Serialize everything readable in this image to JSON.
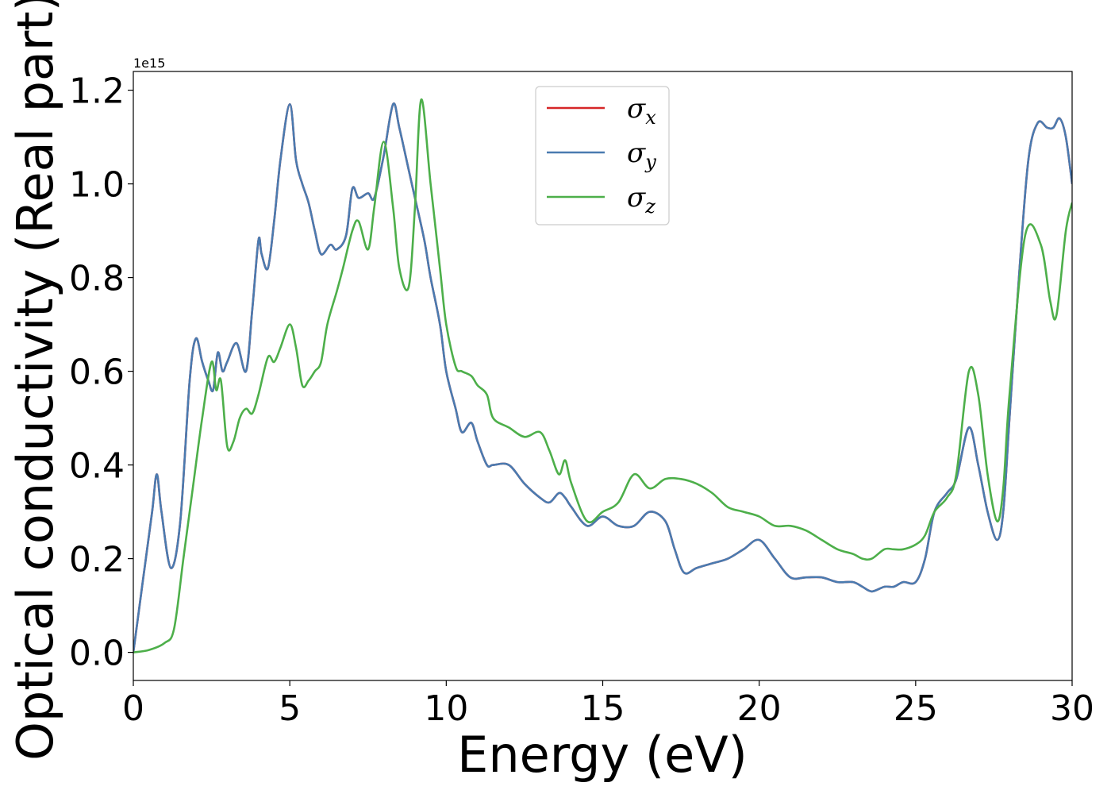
{
  "chart_data": {
    "type": "line",
    "title": "",
    "xlabel": "Energy (eV)",
    "ylabel": "Optical conductivity (Real part)",
    "y_offset_text": "1e15",
    "xlim": [
      0,
      30
    ],
    "ylim": [
      -0.06,
      1.24
    ],
    "xticks": [
      0,
      5,
      10,
      15,
      20,
      25,
      30
    ],
    "xtick_labels": [
      "0",
      "5",
      "10",
      "15",
      "20",
      "25",
      "30"
    ],
    "yticks": [
      0.0,
      0.2,
      0.4,
      0.6,
      0.8,
      1.0,
      1.2
    ],
    "ytick_labels": [
      "0.0",
      "0.2",
      "0.4",
      "0.6",
      "0.8",
      "1.0",
      "1.2"
    ],
    "grid": false,
    "legend_position": "top-center",
    "series": [
      {
        "name": "σx",
        "symbol": "σ",
        "subscript": "x",
        "color": "#d62728",
        "x": [
          0,
          0.3,
          0.6,
          0.75,
          0.9,
          1.2,
          1.5,
          1.8,
          2.0,
          2.2,
          2.4,
          2.55,
          2.7,
          2.85,
          3.0,
          3.3,
          3.6,
          3.8,
          4.0,
          4.1,
          4.3,
          4.5,
          4.7,
          5.0,
          5.2,
          5.4,
          5.6,
          5.8,
          6.0,
          6.3,
          6.5,
          6.8,
          7.0,
          7.2,
          7.5,
          7.7,
          8.0,
          8.3,
          8.5,
          8.8,
          9.0,
          9.3,
          9.5,
          9.8,
          10.0,
          10.3,
          10.5,
          10.8,
          11.0,
          11.3,
          11.5,
          12.0,
          12.5,
          13.0,
          13.3,
          13.6,
          13.8,
          14.0,
          14.5,
          15.0,
          15.5,
          16.0,
          16.5,
          17.0,
          17.3,
          17.6,
          18.0,
          18.5,
          19.0,
          19.5,
          20.0,
          20.5,
          21.0,
          21.5,
          22.0,
          22.5,
          23.0,
          23.3,
          23.6,
          24.0,
          24.3,
          24.6,
          25.0,
          25.3,
          25.6,
          26.0,
          26.3,
          26.7,
          27.0,
          27.3,
          27.6,
          27.8,
          28.0,
          28.3,
          28.6,
          28.9,
          29.2,
          29.4,
          29.6,
          29.8,
          30.0
        ],
        "y": [
          0.0,
          0.15,
          0.3,
          0.38,
          0.3,
          0.18,
          0.28,
          0.58,
          0.67,
          0.62,
          0.58,
          0.56,
          0.64,
          0.6,
          0.62,
          0.66,
          0.6,
          0.73,
          0.88,
          0.85,
          0.82,
          0.92,
          1.05,
          1.17,
          1.05,
          1.0,
          0.96,
          0.9,
          0.85,
          0.87,
          0.86,
          0.89,
          0.99,
          0.97,
          0.98,
          0.97,
          1.06,
          1.17,
          1.12,
          1.03,
          0.97,
          0.88,
          0.8,
          0.7,
          0.6,
          0.52,
          0.47,
          0.49,
          0.45,
          0.4,
          0.4,
          0.4,
          0.36,
          0.33,
          0.32,
          0.34,
          0.33,
          0.31,
          0.27,
          0.29,
          0.27,
          0.27,
          0.3,
          0.28,
          0.22,
          0.17,
          0.18,
          0.19,
          0.2,
          0.22,
          0.24,
          0.2,
          0.16,
          0.16,
          0.16,
          0.15,
          0.15,
          0.14,
          0.13,
          0.14,
          0.14,
          0.15,
          0.15,
          0.2,
          0.3,
          0.34,
          0.37,
          0.48,
          0.4,
          0.3,
          0.24,
          0.3,
          0.5,
          0.8,
          1.05,
          1.13,
          1.12,
          1.12,
          1.14,
          1.1,
          1.0
        ]
      },
      {
        "name": "σy",
        "symbol": "σ",
        "subscript": "y",
        "color": "#4a7bb0",
        "x": [
          0,
          0.3,
          0.6,
          0.75,
          0.9,
          1.2,
          1.5,
          1.8,
          2.0,
          2.2,
          2.4,
          2.55,
          2.7,
          2.85,
          3.0,
          3.3,
          3.6,
          3.8,
          4.0,
          4.1,
          4.3,
          4.5,
          4.7,
          5.0,
          5.2,
          5.4,
          5.6,
          5.8,
          6.0,
          6.3,
          6.5,
          6.8,
          7.0,
          7.2,
          7.5,
          7.7,
          8.0,
          8.3,
          8.5,
          8.8,
          9.0,
          9.3,
          9.5,
          9.8,
          10.0,
          10.3,
          10.5,
          10.8,
          11.0,
          11.3,
          11.5,
          12.0,
          12.5,
          13.0,
          13.3,
          13.6,
          13.8,
          14.0,
          14.5,
          15.0,
          15.5,
          16.0,
          16.5,
          17.0,
          17.3,
          17.6,
          18.0,
          18.5,
          19.0,
          19.5,
          20.0,
          20.5,
          21.0,
          21.5,
          22.0,
          22.5,
          23.0,
          23.3,
          23.6,
          24.0,
          24.3,
          24.6,
          25.0,
          25.3,
          25.6,
          26.0,
          26.3,
          26.7,
          27.0,
          27.3,
          27.6,
          27.8,
          28.0,
          28.3,
          28.6,
          28.9,
          29.2,
          29.4,
          29.6,
          29.8,
          30.0
        ],
        "y": [
          0.0,
          0.15,
          0.3,
          0.38,
          0.3,
          0.18,
          0.28,
          0.58,
          0.67,
          0.62,
          0.58,
          0.56,
          0.64,
          0.6,
          0.62,
          0.66,
          0.6,
          0.73,
          0.88,
          0.85,
          0.82,
          0.92,
          1.05,
          1.17,
          1.05,
          1.0,
          0.96,
          0.9,
          0.85,
          0.87,
          0.86,
          0.89,
          0.99,
          0.97,
          0.98,
          0.97,
          1.06,
          1.17,
          1.12,
          1.03,
          0.97,
          0.88,
          0.8,
          0.7,
          0.6,
          0.52,
          0.47,
          0.49,
          0.45,
          0.4,
          0.4,
          0.4,
          0.36,
          0.33,
          0.32,
          0.34,
          0.33,
          0.31,
          0.27,
          0.29,
          0.27,
          0.27,
          0.3,
          0.28,
          0.22,
          0.17,
          0.18,
          0.19,
          0.2,
          0.22,
          0.24,
          0.2,
          0.16,
          0.16,
          0.16,
          0.15,
          0.15,
          0.14,
          0.13,
          0.14,
          0.14,
          0.15,
          0.15,
          0.2,
          0.3,
          0.34,
          0.37,
          0.48,
          0.4,
          0.3,
          0.24,
          0.3,
          0.5,
          0.8,
          1.05,
          1.13,
          1.12,
          1.12,
          1.14,
          1.1,
          1.0
        ]
      },
      {
        "name": "σz",
        "symbol": "σ",
        "subscript": "z",
        "color": "#4daf4a",
        "x": [
          0,
          0.5,
          1.0,
          1.3,
          1.6,
          1.9,
          2.2,
          2.5,
          2.65,
          2.8,
          3.0,
          3.2,
          3.4,
          3.6,
          3.8,
          4.0,
          4.3,
          4.5,
          4.7,
          5.0,
          5.2,
          5.4,
          5.6,
          5.8,
          6.0,
          6.2,
          6.5,
          6.7,
          7.0,
          7.2,
          7.5,
          7.7,
          8.0,
          8.3,
          8.5,
          8.8,
          9.0,
          9.2,
          9.5,
          9.8,
          10.0,
          10.3,
          10.5,
          10.8,
          11.0,
          11.3,
          11.5,
          12.0,
          12.5,
          13.0,
          13.3,
          13.6,
          13.8,
          14.0,
          14.5,
          15.0,
          15.5,
          16.0,
          16.5,
          17.0,
          17.5,
          18.0,
          18.5,
          19.0,
          19.5,
          20.0,
          20.5,
          21.0,
          21.5,
          22.0,
          22.5,
          23.0,
          23.3,
          23.6,
          24.0,
          24.3,
          24.6,
          25.0,
          25.3,
          25.6,
          26.0,
          26.3,
          26.7,
          27.0,
          27.3,
          27.6,
          27.8,
          28.0,
          28.5,
          29.0,
          29.3,
          29.5,
          29.8,
          30.0
        ],
        "y": [
          0.0,
          0.005,
          0.02,
          0.05,
          0.2,
          0.35,
          0.5,
          0.62,
          0.56,
          0.58,
          0.44,
          0.45,
          0.5,
          0.52,
          0.51,
          0.55,
          0.63,
          0.62,
          0.65,
          0.7,
          0.65,
          0.57,
          0.58,
          0.6,
          0.62,
          0.7,
          0.77,
          0.82,
          0.9,
          0.92,
          0.86,
          0.95,
          1.09,
          0.95,
          0.82,
          0.78,
          0.95,
          1.18,
          1.0,
          0.82,
          0.7,
          0.61,
          0.6,
          0.59,
          0.57,
          0.55,
          0.5,
          0.48,
          0.46,
          0.47,
          0.43,
          0.38,
          0.41,
          0.36,
          0.28,
          0.3,
          0.32,
          0.38,
          0.35,
          0.37,
          0.37,
          0.36,
          0.34,
          0.31,
          0.3,
          0.29,
          0.27,
          0.27,
          0.26,
          0.24,
          0.22,
          0.21,
          0.2,
          0.2,
          0.22,
          0.22,
          0.22,
          0.23,
          0.25,
          0.3,
          0.33,
          0.38,
          0.6,
          0.55,
          0.38,
          0.28,
          0.35,
          0.55,
          0.89,
          0.87,
          0.75,
          0.72,
          0.9,
          0.96
        ]
      }
    ]
  }
}
